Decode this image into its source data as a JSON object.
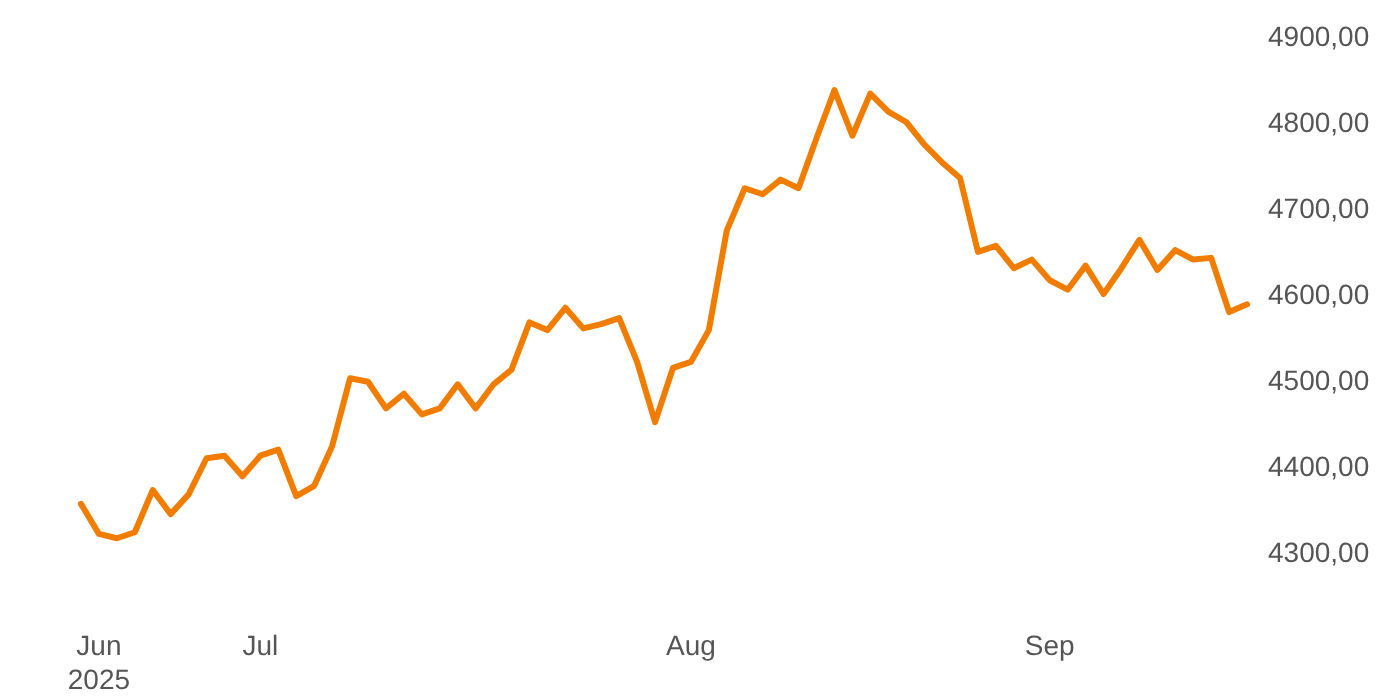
{
  "chart_data": {
    "type": "line",
    "categories": [
      null,
      "Jun\n2025",
      null,
      null,
      null,
      null,
      null,
      null,
      null,
      null,
      "Jul",
      null,
      null,
      null,
      null,
      null,
      null,
      null,
      null,
      null,
      null,
      null,
      null,
      null,
      null,
      null,
      null,
      null,
      null,
      null,
      null,
      null,
      null,
      null,
      "Aug",
      null,
      null,
      null,
      null,
      null,
      null,
      null,
      null,
      null,
      null,
      null,
      null,
      null,
      null,
      null,
      null,
      null,
      null,
      null,
      "Sep",
      null,
      null,
      null,
      null,
      null,
      null,
      null,
      null,
      null,
      null,
      null
    ],
    "series": [
      {
        "color": "#f07c00",
        "values": [
          4356,
          4321,
          4316,
          4323,
          4372,
          4344,
          4367,
          4409,
          4412,
          4388,
          4412,
          4419,
          4365,
          4377,
          4423,
          4502,
          4498,
          4467,
          4484,
          4460,
          4467,
          4495,
          4467,
          4495,
          4512,
          4567,
          4558,
          4584,
          4560,
          4565,
          4572,
          4521,
          4451,
          4514,
          4521,
          4558,
          4674,
          4723,
          4716,
          4733,
          4723,
          4781,
          4837,
          4784,
          4833,
          4812,
          4800,
          4774,
          4753,
          4735,
          4649,
          4656,
          4630,
          4640,
          4616,
          4605,
          4633,
          4600,
          4630,
          4663,
          4628,
          4651,
          4640,
          4642,
          4579,
          4588
        ]
      }
    ],
    "ylim": [
      4300,
      4900
    ],
    "yticks": [
      {
        "value": 4300,
        "label": "4300,00"
      },
      {
        "value": 4400,
        "label": "4400,00"
      },
      {
        "value": 4500,
        "label": "4500,00"
      },
      {
        "value": 4600,
        "label": "4600,00"
      },
      {
        "value": 4700,
        "label": "4700,00"
      },
      {
        "value": 4800,
        "label": "4800,00"
      },
      {
        "value": 4900,
        "label": "4900,00"
      }
    ],
    "grid": false,
    "marker": "none",
    "line_style": "solid"
  }
}
